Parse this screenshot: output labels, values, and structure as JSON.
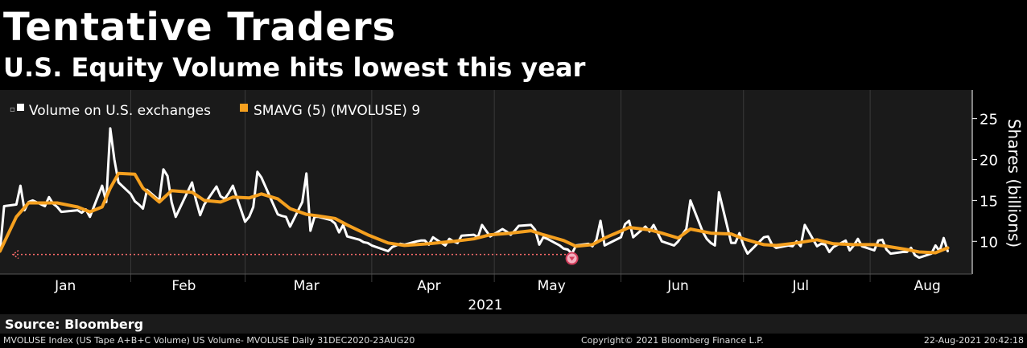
{
  "title": "Tentative Traders",
  "subtitle": "U.S. Equity Volume hits lowest this year",
  "source": "Source: Bloomberg",
  "footer": {
    "left": "MVOLUSE Index (US Tape A+B+C Volume) US Volume- MVOLUSE  Daily 31DEC2020-23AUG20",
    "center": "Copyright© 2021 Bloomberg Finance L.P.",
    "right": "22-Aug-2021 20:42:18"
  },
  "colors": {
    "volume": "#ffffff",
    "smavg": "#f5a01f",
    "background": "#000000",
    "plot_bg": "#1a1a1a",
    "reference": "#ff6b6b"
  },
  "chart_data": {
    "type": "line",
    "ylabel": "Shares (billions)",
    "xlabel": "2021",
    "ylim": [
      6.0,
      28.5
    ],
    "yticks": [
      10,
      15,
      20,
      25
    ],
    "x_range": [
      "2020-12-31",
      "2021-08-26"
    ],
    "month_labels": [
      {
        "label": "Jan",
        "date": "2021-01-16"
      },
      {
        "label": "Feb",
        "date": "2021-02-14"
      },
      {
        "label": "Mar",
        "date": "2021-03-16"
      },
      {
        "label": "Apr",
        "date": "2021-04-15"
      },
      {
        "label": "May",
        "date": "2021-05-15"
      },
      {
        "label": "Jun",
        "date": "2021-06-15"
      },
      {
        "label": "Jul",
        "date": "2021-07-15"
      },
      {
        "label": "Aug",
        "date": "2021-08-15"
      }
    ],
    "month_boundaries": [
      "2021-02-01",
      "2021-03-01",
      "2021-04-01",
      "2021-05-01",
      "2021-06-01",
      "2021-07-01",
      "2021-08-01"
    ],
    "legend": [
      {
        "label": "Volume on U.S. exchanges"
      },
      {
        "label": "SMAVG (5) (MVOLUSE) 9"
      }
    ],
    "legend_position": "top-left",
    "reference_line": {
      "value": 8.4,
      "from": "2020-12-31",
      "to": "2021-05-19"
    },
    "low_marker": {
      "date": "2021-05-20",
      "value": 8.5
    },
    "series": [
      {
        "name": "Volume on U.S. exchanges",
        "points": [
          [
            "2020-12-31",
            8.8
          ],
          [
            "2021-01-01",
            14.3
          ],
          [
            "2021-01-04",
            14.5
          ],
          [
            "2021-01-05",
            16.8
          ],
          [
            "2021-01-06",
            13.8
          ],
          [
            "2021-01-07",
            14.8
          ],
          [
            "2021-01-08",
            15.0
          ],
          [
            "2021-01-11",
            14.3
          ],
          [
            "2021-01-12",
            15.4
          ],
          [
            "2021-01-13",
            14.6
          ],
          [
            "2021-01-14",
            14.2
          ],
          [
            "2021-01-15",
            13.6
          ],
          [
            "2021-01-19",
            13.8
          ],
          [
            "2021-01-20",
            13.5
          ],
          [
            "2021-01-21",
            13.9
          ],
          [
            "2021-01-22",
            13.0
          ],
          [
            "2021-01-25",
            16.8
          ],
          [
            "2021-01-26",
            14.8
          ],
          [
            "2021-01-27",
            23.8
          ],
          [
            "2021-01-28",
            20.0
          ],
          [
            "2021-01-29",
            17.2
          ],
          [
            "2021-02-01",
            15.8
          ],
          [
            "2021-02-02",
            14.9
          ],
          [
            "2021-02-03",
            14.5
          ],
          [
            "2021-02-04",
            14.0
          ],
          [
            "2021-02-05",
            16.3
          ],
          [
            "2021-02-08",
            15.0
          ],
          [
            "2021-02-09",
            18.8
          ],
          [
            "2021-02-10",
            18.0
          ],
          [
            "2021-02-11",
            14.8
          ],
          [
            "2021-02-12",
            13.0
          ],
          [
            "2021-02-16",
            17.2
          ],
          [
            "2021-02-17",
            15.0
          ],
          [
            "2021-02-18",
            13.2
          ],
          [
            "2021-02-19",
            14.5
          ],
          [
            "2021-02-22",
            16.7
          ],
          [
            "2021-02-23",
            15.5
          ],
          [
            "2021-02-24",
            15.2
          ],
          [
            "2021-02-25",
            15.9
          ],
          [
            "2021-02-26",
            16.8
          ],
          [
            "2021-03-01",
            12.4
          ],
          [
            "2021-03-02",
            13.0
          ],
          [
            "2021-03-03",
            14.2
          ],
          [
            "2021-03-04",
            18.5
          ],
          [
            "2021-03-05",
            17.8
          ],
          [
            "2021-03-08",
            14.4
          ],
          [
            "2021-03-09",
            13.3
          ],
          [
            "2021-03-10",
            13.1
          ],
          [
            "2021-03-11",
            13.0
          ],
          [
            "2021-03-12",
            11.8
          ],
          [
            "2021-03-15",
            14.8
          ],
          [
            "2021-03-16",
            18.3
          ],
          [
            "2021-03-17",
            11.3
          ],
          [
            "2021-03-18",
            13.0
          ],
          [
            "2021-03-19",
            13.0
          ],
          [
            "2021-03-22",
            12.6
          ],
          [
            "2021-03-23",
            12.2
          ],
          [
            "2021-03-24",
            11.1
          ],
          [
            "2021-03-25",
            12.0
          ],
          [
            "2021-03-26",
            10.6
          ],
          [
            "2021-03-29",
            10.2
          ],
          [
            "2021-03-30",
            9.9
          ],
          [
            "2021-03-31",
            9.8
          ],
          [
            "2021-04-01",
            9.5
          ],
          [
            "2021-04-05",
            8.8
          ],
          [
            "2021-04-06",
            9.3
          ],
          [
            "2021-04-07",
            9.5
          ],
          [
            "2021-04-08",
            9.7
          ],
          [
            "2021-04-09",
            9.6
          ],
          [
            "2021-04-12",
            10.0
          ],
          [
            "2021-04-13",
            10.1
          ],
          [
            "2021-04-14",
            10.1
          ],
          [
            "2021-04-15",
            9.6
          ],
          [
            "2021-04-16",
            10.5
          ],
          [
            "2021-04-19",
            9.5
          ],
          [
            "2021-04-20",
            10.3
          ],
          [
            "2021-04-21",
            10.0
          ],
          [
            "2021-04-22",
            9.8
          ],
          [
            "2021-04-23",
            10.7
          ],
          [
            "2021-04-26",
            10.8
          ],
          [
            "2021-04-27",
            10.5
          ],
          [
            "2021-04-28",
            12.0
          ],
          [
            "2021-04-29",
            11.3
          ],
          [
            "2021-04-30",
            10.6
          ],
          [
            "2021-05-03",
            11.5
          ],
          [
            "2021-05-04",
            11.2
          ],
          [
            "2021-05-05",
            10.8
          ],
          [
            "2021-05-06",
            11.3
          ],
          [
            "2021-05-07",
            11.9
          ],
          [
            "2021-05-10",
            12.0
          ],
          [
            "2021-05-11",
            11.4
          ],
          [
            "2021-05-12",
            9.6
          ],
          [
            "2021-05-13",
            10.5
          ],
          [
            "2021-05-14",
            10.3
          ],
          [
            "2021-05-17",
            9.5
          ],
          [
            "2021-05-18",
            9.1
          ],
          [
            "2021-05-19",
            9.0
          ],
          [
            "2021-05-20",
            8.5
          ],
          [
            "2021-05-21",
            9.5
          ],
          [
            "2021-05-24",
            9.7
          ],
          [
            "2021-05-25",
            9.4
          ],
          [
            "2021-05-26",
            10.2
          ],
          [
            "2021-05-27",
            12.5
          ],
          [
            "2021-05-28",
            9.5
          ],
          [
            "2021-06-01",
            10.5
          ],
          [
            "2021-06-02",
            12.1
          ],
          [
            "2021-06-03",
            12.5
          ],
          [
            "2021-06-04",
            10.5
          ],
          [
            "2021-06-07",
            11.8
          ],
          [
            "2021-06-08",
            11.2
          ],
          [
            "2021-06-09",
            12.0
          ],
          [
            "2021-06-10",
            11.0
          ],
          [
            "2021-06-11",
            10.0
          ],
          [
            "2021-06-14",
            9.5
          ],
          [
            "2021-06-15",
            10.0
          ],
          [
            "2021-06-16",
            10.8
          ],
          [
            "2021-06-17",
            11.5
          ],
          [
            "2021-06-18",
            15.0
          ],
          [
            "2021-06-21",
            11.2
          ],
          [
            "2021-06-22",
            10.3
          ],
          [
            "2021-06-23",
            9.8
          ],
          [
            "2021-06-24",
            9.5
          ],
          [
            "2021-06-25",
            16.0
          ],
          [
            "2021-06-28",
            9.8
          ],
          [
            "2021-06-29",
            9.8
          ],
          [
            "2021-06-30",
            11.0
          ],
          [
            "2021-07-01",
            9.5
          ],
          [
            "2021-07-02",
            8.5
          ],
          [
            "2021-07-06",
            10.5
          ],
          [
            "2021-07-07",
            10.6
          ],
          [
            "2021-07-08",
            9.6
          ],
          [
            "2021-07-09",
            9.2
          ],
          [
            "2021-07-12",
            9.5
          ],
          [
            "2021-07-13",
            9.4
          ],
          [
            "2021-07-14",
            10.0
          ],
          [
            "2021-07-15",
            9.4
          ],
          [
            "2021-07-16",
            12.0
          ],
          [
            "2021-07-19",
            9.4
          ],
          [
            "2021-07-20",
            9.7
          ],
          [
            "2021-07-21",
            9.6
          ],
          [
            "2021-07-22",
            8.7
          ],
          [
            "2021-07-23",
            9.3
          ],
          [
            "2021-07-26",
            10.1
          ],
          [
            "2021-07-27",
            8.9
          ],
          [
            "2021-07-28",
            9.5
          ],
          [
            "2021-07-29",
            10.3
          ],
          [
            "2021-07-30",
            9.4
          ],
          [
            "2021-08-02",
            8.9
          ],
          [
            "2021-08-03",
            10.1
          ],
          [
            "2021-08-04",
            10.2
          ],
          [
            "2021-08-05",
            9.0
          ],
          [
            "2021-08-06",
            8.5
          ],
          [
            "2021-08-09",
            8.7
          ],
          [
            "2021-08-10",
            8.7
          ],
          [
            "2021-08-11",
            9.2
          ],
          [
            "2021-08-12",
            8.3
          ],
          [
            "2021-08-13",
            8.0
          ],
          [
            "2021-08-16",
            8.5
          ],
          [
            "2021-08-17",
            9.5
          ],
          [
            "2021-08-18",
            8.8
          ],
          [
            "2021-08-19",
            10.4
          ],
          [
            "2021-08-20",
            8.8
          ]
        ]
      },
      {
        "name": "SMAVG (5) (MVOLUSE) 9",
        "points": [
          [
            "2020-12-31",
            8.8
          ],
          [
            "2021-01-04",
            13.0
          ],
          [
            "2021-01-07",
            14.7
          ],
          [
            "2021-01-11",
            14.7
          ],
          [
            "2021-01-14",
            14.7
          ],
          [
            "2021-01-19",
            14.2
          ],
          [
            "2021-01-22",
            13.6
          ],
          [
            "2021-01-25",
            14.2
          ],
          [
            "2021-01-27",
            16.5
          ],
          [
            "2021-01-29",
            18.3
          ],
          [
            "2021-02-02",
            18.2
          ],
          [
            "2021-02-04",
            16.5
          ],
          [
            "2021-02-08",
            14.8
          ],
          [
            "2021-02-11",
            16.2
          ],
          [
            "2021-02-16",
            16.0
          ],
          [
            "2021-02-19",
            15.0
          ],
          [
            "2021-02-23",
            14.8
          ],
          [
            "2021-02-26",
            15.4
          ],
          [
            "2021-03-02",
            15.3
          ],
          [
            "2021-03-05",
            15.8
          ],
          [
            "2021-03-09",
            15.2
          ],
          [
            "2021-03-12",
            14.0
          ],
          [
            "2021-03-16",
            13.3
          ],
          [
            "2021-03-19",
            13.1
          ],
          [
            "2021-03-23",
            12.8
          ],
          [
            "2021-03-26",
            12.0
          ],
          [
            "2021-03-31",
            10.8
          ],
          [
            "2021-04-05",
            9.8
          ],
          [
            "2021-04-09",
            9.5
          ],
          [
            "2021-04-15",
            9.7
          ],
          [
            "2021-04-21",
            10.0
          ],
          [
            "2021-04-26",
            10.3
          ],
          [
            "2021-04-30",
            10.8
          ],
          [
            "2021-05-05",
            11.0
          ],
          [
            "2021-05-10",
            11.3
          ],
          [
            "2021-05-13",
            10.8
          ],
          [
            "2021-05-18",
            10.1
          ],
          [
            "2021-05-21",
            9.4
          ],
          [
            "2021-05-25",
            9.6
          ],
          [
            "2021-05-28",
            10.4
          ],
          [
            "2021-06-03",
            11.7
          ],
          [
            "2021-06-08",
            11.4
          ],
          [
            "2021-06-11",
            11.0
          ],
          [
            "2021-06-15",
            10.4
          ],
          [
            "2021-06-18",
            11.5
          ],
          [
            "2021-06-23",
            11.0
          ],
          [
            "2021-06-28",
            10.9
          ],
          [
            "2021-07-01",
            10.3
          ],
          [
            "2021-07-06",
            9.6
          ],
          [
            "2021-07-09",
            9.5
          ],
          [
            "2021-07-14",
            9.8
          ],
          [
            "2021-07-19",
            10.2
          ],
          [
            "2021-07-23",
            9.7
          ],
          [
            "2021-07-28",
            9.6
          ],
          [
            "2021-08-02",
            9.6
          ],
          [
            "2021-08-05",
            9.4
          ],
          [
            "2021-08-10",
            9.0
          ],
          [
            "2021-08-13",
            8.7
          ],
          [
            "2021-08-17",
            8.6
          ],
          [
            "2021-08-20",
            9.2
          ]
        ]
      }
    ]
  }
}
